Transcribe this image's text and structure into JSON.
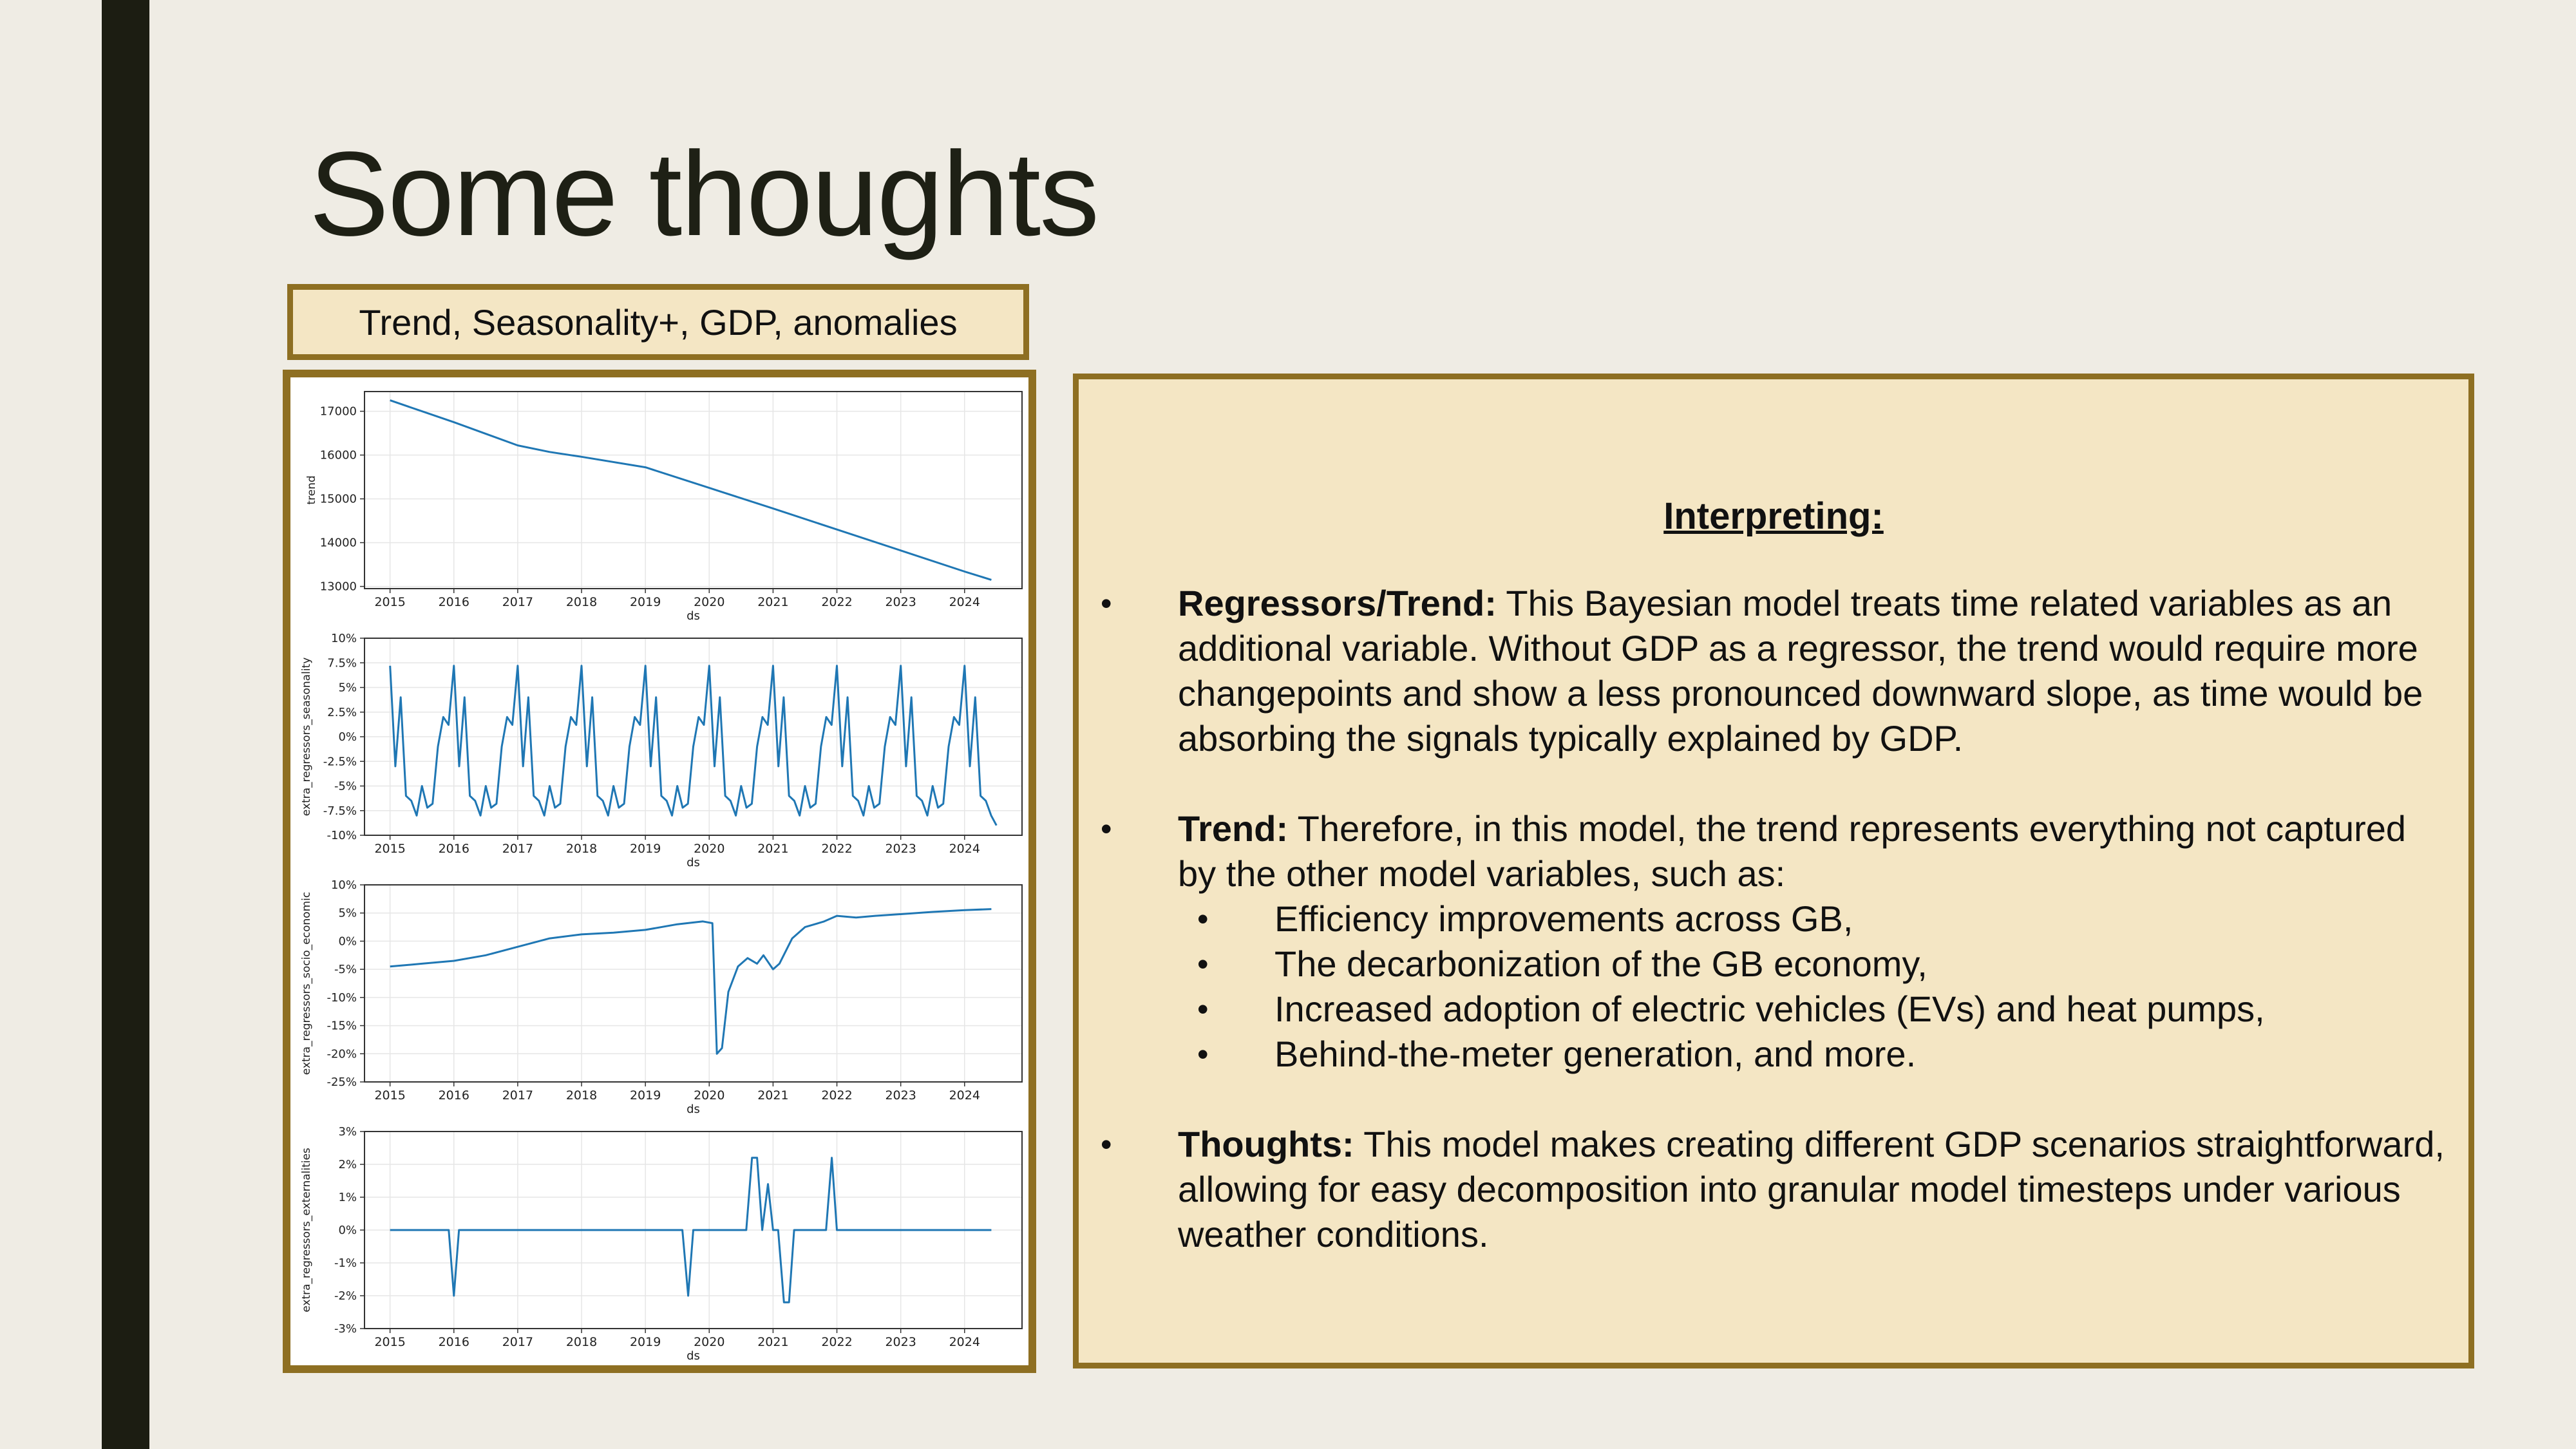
{
  "slide": {
    "title": "Some thoughts",
    "caption": "Trend, Seasonality+, GDP, anomalies"
  },
  "panel": {
    "heading": "Interpreting:",
    "bullets": [
      {
        "lead": "Regressors/Trend:",
        "text": " This Bayesian model treats time related variables as an additional variable. Without GDP as a regressor, the trend would require more changepoints and show a less pronounced downward slope, as time would be absorbing the signals typically explained by GDP."
      },
      {
        "lead": "Trend:",
        "text": " Therefore, in this model, the trend represents everything not captured by the other model variables, such as:",
        "sub": [
          "Efficiency improvements across GB,",
          "The decarbonization of the GB economy,",
          "Increased adoption of electric vehicles (EVs) and heat pumps,",
          "Behind-the-meter generation, and more."
        ]
      },
      {
        "lead": "Thoughts:",
        "text": " This model makes creating different GDP scenarios straightforward, allowing for easy decomposition into granular model timesteps under various weather conditions."
      }
    ]
  },
  "colors": {
    "frame": "#8e6f22",
    "panel_bg": "#f4e6c4",
    "line": "#1f77b4"
  },
  "chart_data": [
    {
      "type": "line",
      "ylabel": "trend",
      "xlabel": "ds",
      "xlim": [
        2014.6,
        2024.9
      ],
      "ylim": [
        12950,
        17450
      ],
      "xticks": [
        2015,
        2016,
        2017,
        2018,
        2019,
        2020,
        2021,
        2022,
        2023,
        2024
      ],
      "yticks": [
        13000,
        14000,
        15000,
        16000,
        17000
      ],
      "ytick_labels": [
        "13000",
        "14000",
        "15000",
        "16000",
        "17000"
      ],
      "grid": true,
      "x": [
        2015.0,
        2016.0,
        2017.0,
        2017.5,
        2018.0,
        2019.0,
        2020.0,
        2021.0,
        2022.0,
        2023.0,
        2024.0,
        2024.42
      ],
      "y": [
        17250,
        16750,
        16220,
        16070,
        15960,
        15720,
        15250,
        14780,
        14300,
        13820,
        13340,
        13150
      ]
    },
    {
      "type": "line",
      "ylabel": "extra_regressors_seasonality",
      "xlabel": "ds",
      "xlim": [
        2014.6,
        2024.9
      ],
      "ylim": [
        -10,
        10
      ],
      "xticks": [
        2015,
        2016,
        2017,
        2018,
        2019,
        2020,
        2021,
        2022,
        2023,
        2024
      ],
      "yticks": [
        -10,
        -7.5,
        -5,
        -2.5,
        0,
        2.5,
        5,
        7.5,
        10
      ],
      "ytick_labels": [
        "-10%",
        "-7.5%",
        "-5%",
        "-2.5%",
        "0%",
        "2.5%",
        "5%",
        "7.5%",
        "10%"
      ],
      "grid": true,
      "pattern": [
        7.2,
        -3.0,
        4.0,
        -6.0,
        -6.5,
        -8.0,
        -5.0,
        -7.2,
        -6.8,
        -1.0,
        2.0,
        1.2
      ],
      "x_start": 2015.0,
      "months": 114,
      "last_value": -9.0
    },
    {
      "type": "line",
      "ylabel": "extra_regressors_socio_economic",
      "xlabel": "ds",
      "xlim": [
        2014.6,
        2024.9
      ],
      "ylim": [
        -25,
        10
      ],
      "xticks": [
        2015,
        2016,
        2017,
        2018,
        2019,
        2020,
        2021,
        2022,
        2023,
        2024
      ],
      "yticks": [
        -25,
        -20,
        -15,
        -10,
        -5,
        0,
        5,
        10
      ],
      "ytick_labels": [
        "-25%",
        "-20%",
        "-15%",
        "-10%",
        "-5%",
        "0%",
        "5%",
        "10%"
      ],
      "grid": true,
      "x": [
        2015.0,
        2015.5,
        2016.0,
        2016.5,
        2017.0,
        2017.5,
        2018.0,
        2018.5,
        2019.0,
        2019.5,
        2019.9,
        2020.05,
        2020.12,
        2020.2,
        2020.3,
        2020.45,
        2020.6,
        2020.75,
        2020.85,
        2021.0,
        2021.1,
        2021.3,
        2021.5,
        2021.8,
        2022.0,
        2022.3,
        2022.6,
        2023.0,
        2023.5,
        2024.0,
        2024.42
      ],
      "y": [
        -4.5,
        -4.0,
        -3.5,
        -2.5,
        -1.0,
        0.5,
        1.2,
        1.5,
        2.0,
        3.0,
        3.5,
        3.2,
        -20.0,
        -19.0,
        -9.0,
        -4.5,
        -3.0,
        -4.0,
        -2.5,
        -5.0,
        -4.0,
        0.5,
        2.5,
        3.5,
        4.5,
        4.2,
        4.5,
        4.8,
        5.2,
        5.5,
        5.7
      ]
    },
    {
      "type": "line",
      "ylabel": "extra_regressors_externalities",
      "xlabel": "ds",
      "xlim": [
        2014.6,
        2024.9
      ],
      "ylim": [
        -3,
        3
      ],
      "xticks": [
        2015,
        2016,
        2017,
        2018,
        2019,
        2020,
        2021,
        2022,
        2023,
        2024
      ],
      "yticks": [
        -3,
        -2,
        -1,
        0,
        1,
        2,
        3
      ],
      "ytick_labels": [
        "-3%",
        "-2%",
        "-1%",
        "0%",
        "1%",
        "2%",
        "3%"
      ],
      "grid": true,
      "x": [
        2015.0,
        2015.92,
        2016.0,
        2016.08,
        2019.58,
        2019.67,
        2019.75,
        2020.58,
        2020.67,
        2020.75,
        2020.83,
        2020.92,
        2021.0,
        2021.08,
        2021.17,
        2021.25,
        2021.33,
        2021.42,
        2021.83,
        2021.92,
        2022.0,
        2024.42
      ],
      "y": [
        0,
        0,
        -2.0,
        0,
        0,
        -2.0,
        0,
        0,
        2.2,
        2.2,
        0,
        1.4,
        0,
        0,
        -2.2,
        -2.2,
        0,
        0,
        0,
        2.2,
        0,
        0
      ]
    }
  ]
}
